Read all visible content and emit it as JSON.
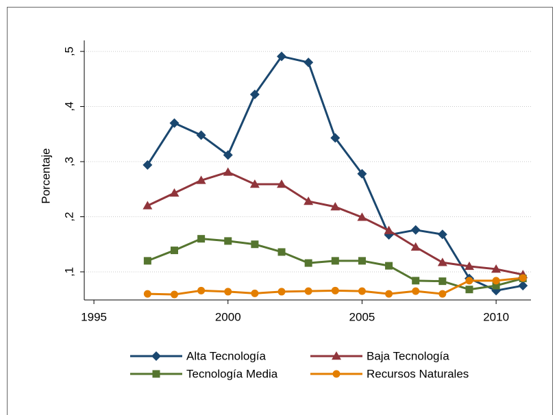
{
  "chart_data": {
    "type": "line",
    "y_label": "Porcentaje",
    "x": [
      1997,
      1998,
      1999,
      2000,
      2001,
      2002,
      2003,
      2004,
      2005,
      2006,
      2007,
      2008,
      2009,
      2010,
      2011
    ],
    "series": [
      {
        "name": "Alta Tecnología",
        "color": "#1a476f",
        "marker": "diamond",
        "values": [
          0.294,
          0.37,
          0.348,
          0.312,
          0.422,
          0.491,
          0.48,
          0.343,
          0.278,
          0.167,
          0.176,
          0.168,
          0.088,
          0.066,
          0.075
        ]
      },
      {
        "name": "Baja Tecnología",
        "color": "#90353b",
        "marker": "triangle",
        "values": [
          0.22,
          0.243,
          0.266,
          0.281,
          0.259,
          0.259,
          0.228,
          0.218,
          0.199,
          0.175,
          0.145,
          0.117,
          0.11,
          0.105,
          0.095
        ]
      },
      {
        "name": "Tecnología Media",
        "color": "#55752f",
        "marker": "square",
        "values": [
          0.12,
          0.139,
          0.16,
          0.156,
          0.15,
          0.136,
          0.116,
          0.12,
          0.12,
          0.111,
          0.084,
          0.083,
          0.068,
          0.075,
          0.088
        ]
      },
      {
        "name": "Recursos Naturales",
        "color": "#e37e00",
        "marker": "circle",
        "values": [
          0.06,
          0.059,
          0.066,
          0.064,
          0.061,
          0.064,
          0.065,
          0.066,
          0.065,
          0.06,
          0.065,
          0.06,
          0.084,
          0.084,
          0.089
        ]
      }
    ],
    "xlim": [
      1994.64,
      2011.3
    ],
    "xticks": [
      1995,
      2000,
      2005,
      2010
    ],
    "ylim": [
      0.049,
      0.52
    ],
    "yticks": [
      {
        "value": 0.1,
        "label": ",1"
      },
      {
        "value": 0.2,
        "label": ",2"
      },
      {
        "value": 0.3,
        "label": ",3"
      },
      {
        "value": 0.4,
        "label": ",4"
      },
      {
        "value": 0.5,
        "label": ",5"
      }
    ],
    "grid": true
  }
}
